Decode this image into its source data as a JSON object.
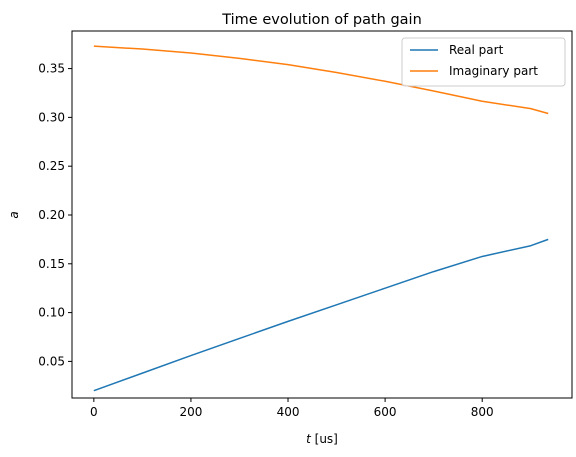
{
  "chart_data": {
    "type": "line",
    "title": "Time evolution of path gain",
    "xlabel_italic": "t",
    "xlabel_rest": " [us]",
    "ylabel": "a",
    "xlim": [
      -45,
      985
    ],
    "ylim": [
      0.0125,
      0.3885
    ],
    "xticks": [
      0,
      200,
      400,
      600,
      800
    ],
    "yticks": [
      0.05,
      0.1,
      0.15,
      0.2,
      0.25,
      0.3,
      0.35
    ],
    "ytick_labels": [
      "0.05",
      "0.10",
      "0.15",
      "0.20",
      "0.25",
      "0.30",
      "0.35"
    ],
    "legend_position": "upper right",
    "x": [
      0,
      100,
      200,
      300,
      400,
      500,
      600,
      700,
      800,
      900,
      936
    ],
    "series": [
      {
        "name": "Real part",
        "color": "#1f77b4",
        "values": [
          0.02,
          0.038,
          0.056,
          0.0735,
          0.091,
          0.108,
          0.125,
          0.142,
          0.1575,
          0.1685,
          0.175
        ]
      },
      {
        "name": "Imaginary part",
        "color": "#ff7f0e",
        "values": [
          0.373,
          0.37,
          0.366,
          0.3605,
          0.354,
          0.346,
          0.337,
          0.327,
          0.3165,
          0.309,
          0.304
        ]
      }
    ]
  }
}
